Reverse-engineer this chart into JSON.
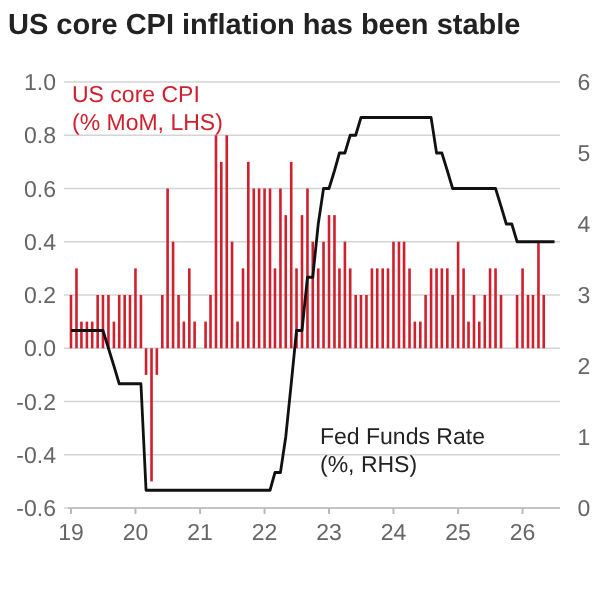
{
  "chart_data": {
    "type": "bar",
    "title": "US core CPI inflation has been stable",
    "x": [
      "2019-01",
      "2019-02",
      "2019-03",
      "2019-04",
      "2019-05",
      "2019-06",
      "2019-07",
      "2019-08",
      "2019-09",
      "2019-10",
      "2019-11",
      "2019-12",
      "2020-01",
      "2020-02",
      "2020-03",
      "2020-04",
      "2020-05",
      "2020-06",
      "2020-07",
      "2020-08",
      "2020-09",
      "2020-10",
      "2020-11",
      "2020-12",
      "2021-01",
      "2021-02",
      "2021-03",
      "2021-04",
      "2021-05",
      "2021-06",
      "2021-07",
      "2021-08",
      "2021-09",
      "2021-10",
      "2021-11",
      "2021-12",
      "2022-01",
      "2022-02",
      "2022-03",
      "2022-04",
      "2022-05",
      "2022-06",
      "2022-07",
      "2022-08",
      "2022-09",
      "2022-10",
      "2022-11",
      "2022-12",
      "2023-01",
      "2023-02",
      "2023-03",
      "2023-04",
      "2023-05",
      "2023-06",
      "2023-07",
      "2023-08",
      "2023-09",
      "2023-10",
      "2023-11",
      "2023-12",
      "2024-01",
      "2024-02",
      "2024-03",
      "2024-04",
      "2024-05",
      "2024-06",
      "2024-07",
      "2024-08",
      "2024-09",
      "2024-10",
      "2024-11",
      "2024-12",
      "2025-01",
      "2025-02",
      "2025-03",
      "2025-04",
      "2025-05",
      "2025-06",
      "2025-07",
      "2025-08",
      "2025-09",
      "2025-10",
      "2025-11",
      "2025-12",
      "2026-01",
      "2026-02",
      "2026-03",
      "2026-04",
      "2026-05"
    ],
    "series": [
      {
        "name": "US core CPI (% MoM, LHS)",
        "color": "#d0202e",
        "values": [
          0.2,
          0.3,
          0.1,
          0.1,
          0.1,
          0.2,
          0.2,
          0.2,
          0.1,
          0.2,
          0.2,
          0.2,
          0.3,
          0.2,
          -0.1,
          -0.5,
          -0.1,
          0.2,
          0.6,
          0.4,
          0.2,
          0.1,
          0.3,
          0.1,
          0.0,
          0.1,
          0.2,
          0.8,
          0.7,
          0.8,
          0.4,
          0.1,
          0.3,
          0.7,
          0.6,
          0.6,
          0.6,
          0.6,
          0.3,
          0.6,
          0.5,
          0.7,
          0.3,
          0.5,
          0.6,
          0.4,
          0.3,
          0.4,
          0.5,
          0.5,
          0.3,
          0.4,
          0.3,
          0.2,
          0.2,
          0.2,
          0.3,
          0.3,
          0.3,
          0.3,
          0.4,
          0.4,
          0.4,
          0.3,
          0.1,
          0.1,
          0.2,
          0.3,
          0.3,
          0.3,
          0.3,
          0.2,
          0.4,
          0.3,
          0.1,
          0.2,
          0.1,
          0.2,
          0.3,
          0.3,
          0.2,
          null,
          null,
          0.2,
          0.3,
          0.2,
          0.2,
          0.4,
          0.2
        ]
      },
      {
        "name": "Fed Funds Rate (%, RHS)",
        "type": "line",
        "axis": "y2",
        "color": "#111111",
        "x": [
          "2019-01",
          "2019-07",
          "2019-08",
          "2019-09",
          "2019-10",
          "2020-02",
          "2020-03",
          "2022-02",
          "2022-03",
          "2022-04",
          "2022-05",
          "2022-06",
          "2022-07",
          "2022-08",
          "2022-09",
          "2022-10",
          "2022-11",
          "2022-12",
          "2023-01",
          "2023-02",
          "2023-03",
          "2023-04",
          "2023-05",
          "2023-06",
          "2023-07",
          "2024-08",
          "2024-09",
          "2024-10",
          "2024-11",
          "2024-12",
          "2025-08",
          "2025-09",
          "2025-10",
          "2025-11",
          "2025-12",
          "2026-07"
        ],
        "values": [
          2.5,
          2.5,
          2.25,
          2.0,
          1.75,
          1.75,
          0.25,
          0.25,
          0.5,
          0.5,
          1.0,
          1.75,
          2.5,
          2.5,
          3.25,
          3.25,
          4.0,
          4.5,
          4.5,
          4.75,
          5.0,
          5.0,
          5.25,
          5.25,
          5.5,
          5.5,
          5.0,
          5.0,
          4.75,
          4.5,
          4.5,
          4.25,
          4.0,
          4.0,
          3.75,
          3.75
        ]
      }
    ],
    "xlim": [
      "2018-12-15",
      "2026-08"
    ],
    "xticks": [
      {
        "value": "2019",
        "label": "19"
      },
      {
        "value": "2020",
        "label": "20"
      },
      {
        "value": "2021",
        "label": "21"
      },
      {
        "value": "2022",
        "label": "22"
      },
      {
        "value": "2023",
        "label": "23"
      },
      {
        "value": "2024",
        "label": "24"
      },
      {
        "value": "2025",
        "label": "25"
      },
      {
        "value": "2026",
        "label": "26"
      }
    ],
    "ylim": [
      -0.6,
      1.0
    ],
    "yticks": [
      {
        "value": -0.6,
        "label": "-0.6"
      },
      {
        "value": -0.4,
        "label": "-0.4"
      },
      {
        "value": -0.2,
        "label": "-0.2"
      },
      {
        "value": 0,
        "label": "0.0"
      },
      {
        "value": 0.2,
        "label": "0.2"
      },
      {
        "value": 0.4,
        "label": "0.4"
      },
      {
        "value": 0.6,
        "label": "0.6"
      },
      {
        "value": 0.8,
        "label": "0.8"
      },
      {
        "value": 1.0,
        "label": "1.0"
      }
    ],
    "y2lim": [
      0,
      6
    ],
    "y2ticks": [
      0,
      1,
      2,
      3,
      4,
      5,
      6
    ],
    "grid": "y"
  }
}
